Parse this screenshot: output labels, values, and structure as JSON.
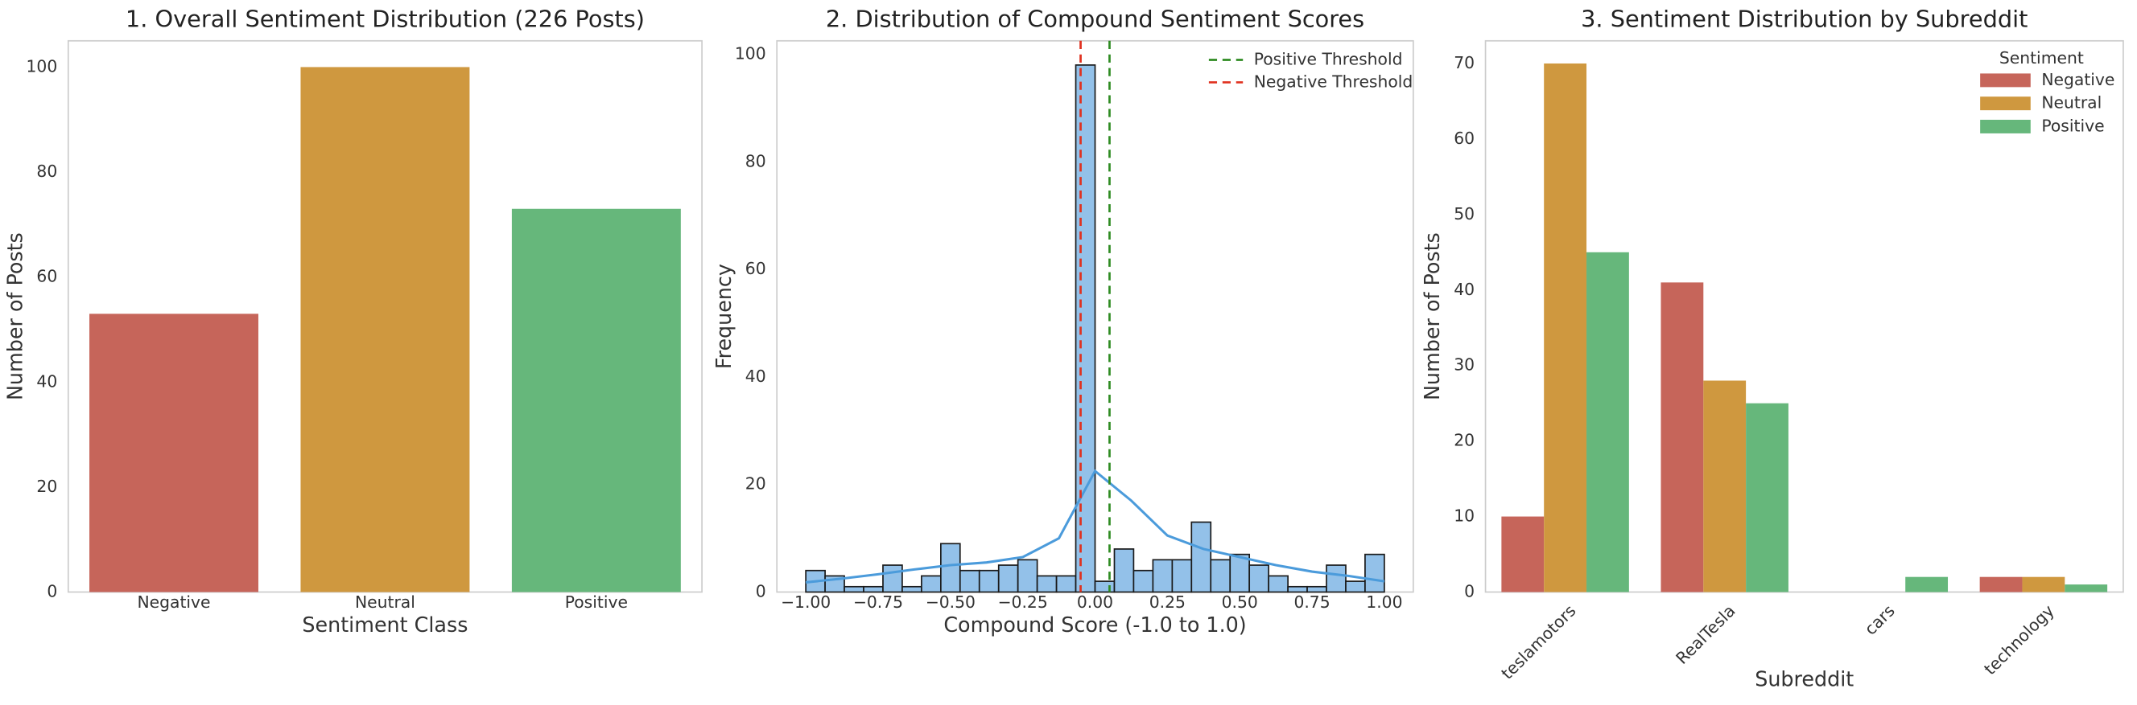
{
  "chart_data": [
    {
      "type": "bar",
      "title": "1. Overall Sentiment Distribution (226 Posts)",
      "xlabel": "Sentiment Class",
      "ylabel": "Number of Posts",
      "categories": [
        "Negative",
        "Neutral",
        "Positive"
      ],
      "values": [
        53,
        100,
        73
      ],
      "colors": [
        "#c6655a",
        "#cf983f",
        "#66b77b"
      ],
      "ylim": [
        0,
        105
      ],
      "yticks": [
        0,
        20,
        40,
        60,
        80,
        100
      ],
      "grid": false
    },
    {
      "type": "histogram",
      "title": "2. Distribution of Compound Sentiment Scores",
      "xlabel": "Compound Score (-1.0 to 1.0)",
      "ylabel": "Frequency",
      "bins": [
        -1,
        -0.9333,
        -0.8667,
        -0.8,
        -0.7333,
        -0.6667,
        -0.6,
        -0.5333,
        -0.4667,
        -0.4,
        -0.3333,
        -0.2667,
        -0.2,
        -0.1333,
        -0.0667,
        0,
        0.0667,
        0.1333,
        0.2,
        0.2667,
        0.3333,
        0.4,
        0.4667,
        0.5333,
        0.6,
        0.6667,
        0.7333,
        0.8,
        0.8667,
        0.9333,
        1
      ],
      "values": [
        4,
        3,
        1,
        1,
        5,
        1,
        3,
        9,
        4,
        4,
        5,
        6,
        3,
        3,
        98,
        2,
        8,
        4,
        6,
        6,
        13,
        6,
        7,
        5,
        3,
        1,
        1,
        5,
        2,
        7
      ],
      "color": "#93c1e9",
      "edgecolor": "#1a1a1a",
      "kde": {
        "color": "#4b9bdb",
        "x": [
          -1,
          -0.875,
          -0.75,
          -0.625,
          -0.5,
          -0.375,
          -0.25,
          -0.125,
          0,
          0.125,
          0.25,
          0.375,
          0.5,
          0.625,
          0.75,
          0.875,
          1
        ],
        "values": [
          1.8,
          2.5,
          3.3,
          4.2,
          5,
          5.5,
          6.5,
          10,
          22.5,
          17,
          10.5,
          8,
          6.5,
          5,
          3.8,
          3,
          2
        ]
      },
      "vlines": [
        {
          "name": "Positive Threshold",
          "value": 0.05,
          "color": "#2e8b22"
        },
        {
          "name": "Negative Threshold",
          "value": -0.05,
          "color": "#e0301e"
        }
      ],
      "xlim": [
        -1.1,
        1.1
      ],
      "xticks": [
        {
          "value": -1,
          "label": "−1.00"
        },
        {
          "value": -0.75,
          "label": "−0.75"
        },
        {
          "value": -0.5,
          "label": "−0.50"
        },
        {
          "value": -0.25,
          "label": "−0.25"
        },
        {
          "value": 0,
          "label": "0.00"
        },
        {
          "value": 0.25,
          "label": "0.25"
        },
        {
          "value": 0.5,
          "label": "0.50"
        },
        {
          "value": 0.75,
          "label": "0.75"
        },
        {
          "value": 1,
          "label": "1.00"
        }
      ],
      "ylim": [
        0,
        102.5
      ],
      "yticks": [
        0,
        20,
        40,
        60,
        80,
        100
      ],
      "grid": false,
      "legend": "upper right"
    },
    {
      "type": "bar",
      "title": "3. Sentiment Distribution by Subreddit",
      "xlabel": "Subreddit",
      "ylabel": "Number of Posts",
      "categories": [
        "teslamotors",
        "RealTesla",
        "cars",
        "technology"
      ],
      "legend_title": "Sentiment",
      "legend": "upper right",
      "series": [
        {
          "name": "Negative",
          "color": "#c6655a",
          "values": [
            10,
            41,
            0,
            2
          ]
        },
        {
          "name": "Neutral",
          "color": "#cf983f",
          "values": [
            70,
            28,
            0,
            2
          ]
        },
        {
          "name": "Positive",
          "color": "#66b77b",
          "values": [
            45,
            25,
            2,
            1
          ]
        }
      ],
      "ylim": [
        0,
        73
      ],
      "yticks": [
        0,
        10,
        20,
        30,
        40,
        50,
        60,
        70
      ],
      "grid": false
    }
  ]
}
